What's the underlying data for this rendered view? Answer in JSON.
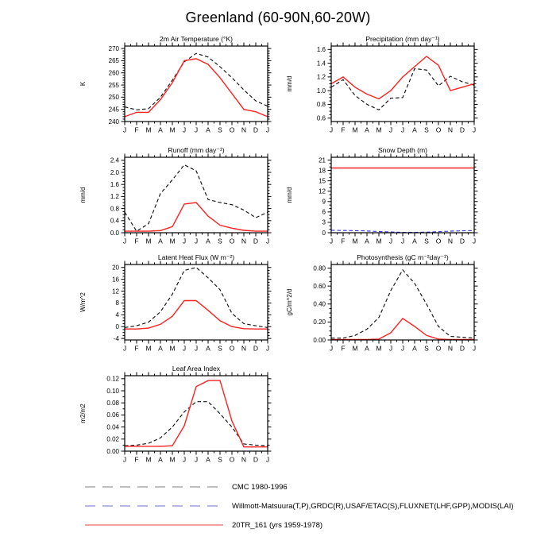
{
  "title": "Greenland (60-90N,60-20W)",
  "legend": {
    "items": [
      {
        "label": "CMC 1980-1996",
        "color": "#a8a8a8",
        "dash": "13 9"
      },
      {
        "label": "Willmott-Matsuura(T,P),GRDC(R),USAF/ETAC(S),FLUXNET(LHF,GPP),MODIS(LAI)",
        "color": "#9f9fdf",
        "dash": "13 9"
      },
      {
        "label": "20TR_161 (yrs 1959-1978)",
        "color": "#ef8080",
        "dash": ""
      }
    ]
  },
  "chart_data": {
    "type": "line",
    "months": [
      "J",
      "F",
      "M",
      "A",
      "M",
      "J",
      "J",
      "A",
      "S",
      "O",
      "N",
      "D",
      "J"
    ],
    "line_styles": {
      "obs_black": {
        "color": "#111111",
        "dashed": true
      },
      "obs_blue": {
        "color": "#3333ee",
        "dashed": true
      },
      "model_red": {
        "color": "#ff2020",
        "dashed": false
      }
    },
    "charts": [
      {
        "title": "2m Air Temperature (°K)",
        "ylabel": "K",
        "ylim": [
          240,
          271
        ],
        "yticks": [
          240,
          245,
          250,
          255,
          260,
          265,
          270
        ],
        "tick_decimals": 0,
        "minor_divisions": 5,
        "series": [
          {
            "name": "CMC 1980-1996",
            "style": "obs_black",
            "values": [
              246,
              244.8,
              245.3,
              250,
              257,
              264.5,
              268,
              266.5,
              262.5,
              258,
              253,
              248.5,
              246.3
            ]
          },
          {
            "name": "20TR_161 (yrs 1959-1978)",
            "style": "model_red",
            "values": [
              242,
              243.8,
              243.8,
              249,
              256,
              265,
              265.8,
              263.5,
              258,
              251.5,
              245,
              244,
              242
            ]
          }
        ]
      },
      {
        "title": "Precipitation (mm day⁻¹)",
        "ylabel": "mm/d",
        "ylim": [
          0.55,
          1.65
        ],
        "yticks": [
          0.6,
          0.8,
          1.0,
          1.2,
          1.4,
          1.6
        ],
        "tick_decimals": 1,
        "minor_divisions": 4,
        "series": [
          {
            "name": "CMC 1980-1996",
            "style": "obs_black",
            "values": [
              1.05,
              1.16,
              0.93,
              0.8,
              0.72,
              0.89,
              0.9,
              1.32,
              1.3,
              1.07,
              1.21,
              1.13,
              1.08
            ]
          },
          {
            "name": "20TR_161 (yrs 1959-1978)",
            "style": "model_red",
            "values": [
              1.1,
              1.2,
              1.05,
              0.95,
              0.88,
              1.0,
              1.2,
              1.35,
              1.5,
              1.37,
              1.0,
              1.05,
              1.1
            ]
          }
        ]
      },
      {
        "title": "Runoff (mm day⁻¹)",
        "ylabel": "mm/d",
        "ylim": [
          0,
          2.5
        ],
        "yticks": [
          0.0,
          0.4,
          0.8,
          1.2,
          1.6,
          2.0,
          2.4
        ],
        "tick_decimals": 1,
        "minor_divisions": 4,
        "series": [
          {
            "name": "CMC 1980-1996",
            "style": "obs_black",
            "values": [
              0.68,
              0.05,
              0.3,
              1.3,
              1.75,
              2.25,
              2.05,
              1.1,
              1.0,
              0.93,
              0.75,
              0.5,
              0.68
            ]
          },
          {
            "name": "20TR_161 (yrs 1959-1978)",
            "style": "model_red",
            "values": [
              0.05,
              0.05,
              0.05,
              0.07,
              0.2,
              0.95,
              1.0,
              0.55,
              0.25,
              0.15,
              0.08,
              0.05,
              0.05
            ]
          }
        ]
      },
      {
        "title": "Snow Depth (m)",
        "ylabel": "mm/d",
        "ylim": [
          0,
          21.8
        ],
        "yticks": [
          0,
          3,
          6,
          9,
          12,
          15,
          18,
          21
        ],
        "tick_decimals": 0,
        "minor_divisions": 3,
        "series": [
          {
            "name": "Willmott-Matsuura(T,P),GRDC(R),USAF/ETAC(S),FLUXNET(LHF,GPP),MODIS(LAI)",
            "style": "obs_blue",
            "values": [
              0.7,
              0.65,
              0.6,
              0.5,
              0.35,
              0.2,
              0.1,
              0.1,
              0.15,
              0.3,
              0.45,
              0.55,
              0.65
            ]
          },
          {
            "name": "20TR_161 (yrs 1959-1978)",
            "style": "model_red",
            "values": [
              18.7,
              18.7,
              18.7,
              18.7,
              18.7,
              18.7,
              18.7,
              18.7,
              18.7,
              18.7,
              18.7,
              18.7,
              18.7
            ]
          }
        ]
      },
      {
        "title": "Latent Heat Flux (W m⁻²)",
        "ylabel": "W/m^2",
        "ylim": [
          -4.5,
          21
        ],
        "yticks": [
          -4,
          0,
          4,
          8,
          12,
          16,
          20
        ],
        "tick_decimals": 0,
        "minor_divisions": 4,
        "series": [
          {
            "name": "CMC 1980-1996",
            "style": "obs_black",
            "values": [
              -0.3,
              0.3,
              1.5,
              5,
              11,
              19,
              20,
              16.5,
              12.5,
              4.5,
              1,
              0.3,
              -0.3
            ]
          },
          {
            "name": "20TR_161 (yrs 1959-1978)",
            "style": "model_red",
            "values": [
              -0.8,
              -0.8,
              -0.5,
              0.8,
              3.5,
              8.8,
              8.8,
              5.5,
              2.0,
              0.0,
              -0.7,
              -0.8,
              -0.8
            ]
          }
        ]
      },
      {
        "title": "Photosynthesis (gC m⁻²day⁻¹)",
        "ylabel": "gC/m^2/d",
        "ylim": [
          0,
          0.84
        ],
        "yticks": [
          0.0,
          0.2,
          0.4,
          0.6,
          0.8
        ],
        "tick_decimals": 2,
        "minor_divisions": 4,
        "series": [
          {
            "name": "CMC 1980-1996",
            "style": "obs_black",
            "values": [
              0.02,
              0.02,
              0.05,
              0.12,
              0.25,
              0.55,
              0.78,
              0.63,
              0.4,
              0.15,
              0.04,
              0.03,
              0.02
            ]
          },
          {
            "name": "20TR_161 (yrs 1959-1978)",
            "style": "model_red",
            "values": [
              0.005,
              0.005,
              0.005,
              0.005,
              0.01,
              0.08,
              0.24,
              0.15,
              0.05,
              0.01,
              0.005,
              0.005,
              0.005
            ]
          }
        ]
      },
      {
        "title": "Leaf Area Index",
        "ylabel": "m2/m2",
        "ylim": [
          0,
          0.125
        ],
        "yticks": [
          0.0,
          0.02,
          0.04,
          0.06,
          0.08,
          0.1,
          0.12
        ],
        "tick_decimals": 2,
        "minor_divisions": 2,
        "series": [
          {
            "name": "CMC 1980-1996",
            "style": "obs_black",
            "values": [
              0.009,
              0.01,
              0.013,
              0.022,
              0.04,
              0.065,
              0.082,
              0.082,
              0.062,
              0.04,
              0.012,
              0.01,
              0.009
            ]
          },
          {
            "name": "20TR_161 (yrs 1959-1978)",
            "style": "model_red",
            "values": [
              0.008,
              0.008,
              0.008,
              0.008,
              0.009,
              0.042,
              0.107,
              0.117,
              0.117,
              0.05,
              0.007,
              0.007,
              0.007
            ]
          }
        ]
      }
    ]
  }
}
